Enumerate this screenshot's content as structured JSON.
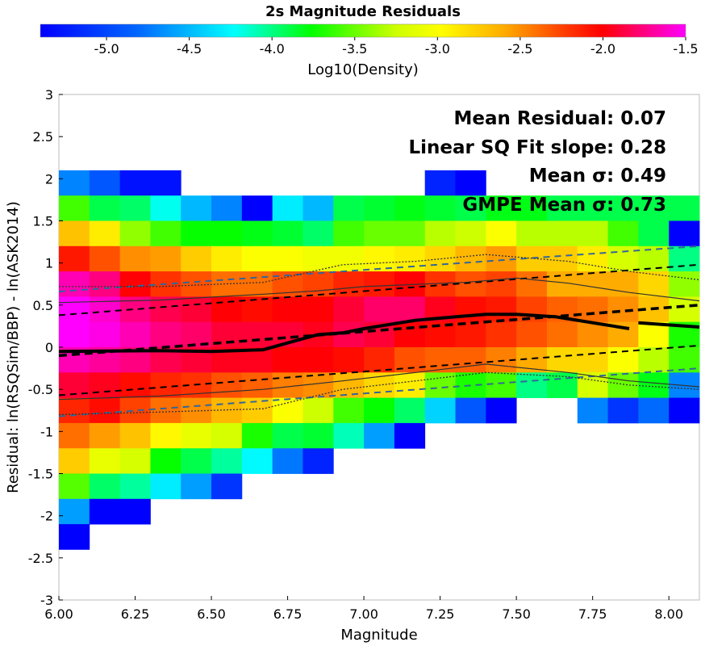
{
  "chart_data": {
    "type": "heatmap",
    "title": "2s Magnitude Residuals",
    "xlabel": "Magnitude",
    "ylabel": "Residual: ln(RSQSim/BBP) - ln(ASK2014)",
    "xlim": [
      6.0,
      8.1
    ],
    "ylim": [
      -3,
      3
    ],
    "xticks": [
      "6.00",
      "6.25",
      "6.50",
      "6.75",
      "7.00",
      "7.25",
      "7.50",
      "7.75",
      "8.00"
    ],
    "yticks": [
      "3",
      "2.5",
      "2",
      "1.5",
      "1",
      "0.5",
      "0",
      "-0.5",
      "-1",
      "-1.5",
      "-2",
      "-2.5",
      "-3"
    ],
    "colorbar": {
      "label": "Log10(Density)",
      "range": [
        -5.4,
        -1.5
      ],
      "ticks": [
        "-5.0",
        "-4.5",
        "-4.0",
        "-3.5",
        "-3.0",
        "-2.5",
        "-2.0",
        "-1.5"
      ]
    },
    "annotations": [
      "Mean Residual: 0.07",
      "Linear SQ Fit slope: 0.28",
      "Mean σ: 0.49",
      "GMPE Mean σ: 0.73"
    ],
    "cell_width": 0.1,
    "cell_height": 0.3,
    "x_start": 6.0,
    "cells": [
      {
        "y": 1.8,
        "values": [
          -4.7,
          -4.9,
          -5.3,
          -5.3,
          null,
          null,
          null,
          null,
          null,
          null,
          null,
          null,
          -5.2,
          -5.4,
          null,
          null,
          null,
          null,
          null,
          null,
          null
        ]
      },
      {
        "y": 1.5,
        "values": [
          -3.6,
          -3.9,
          -3.95,
          -4.2,
          -4.5,
          -4.7,
          -5.4,
          -4.3,
          -4.5,
          -3.9,
          -3.85,
          -3.8,
          -3.85,
          -3.9,
          -3.8,
          -3.8,
          -3.9,
          -3.9,
          -3.9,
          -3.9,
          -3.9
        ]
      },
      {
        "y": 1.2,
        "values": [
          -2.7,
          -2.9,
          -3.4,
          -3.6,
          -3.75,
          -3.75,
          -3.8,
          -3.85,
          -3.95,
          -3.6,
          -3.5,
          -3.5,
          -3.3,
          -3.25,
          -3.0,
          -3.3,
          -3.3,
          -3.3,
          -3.6,
          -3.9,
          -5.4
        ]
      },
      {
        "y": 0.9,
        "values": [
          -2.1,
          -2.3,
          -2.5,
          -2.55,
          -2.75,
          -2.9,
          -3.0,
          -3.0,
          -3.05,
          -3.05,
          -2.95,
          -2.9,
          -2.8,
          -2.65,
          -2.55,
          -2.75,
          -2.75,
          -2.9,
          -3.2,
          -3.3,
          -4.0
        ]
      },
      {
        "y": 0.6,
        "values": [
          -1.65,
          -1.75,
          -2.0,
          -2.2,
          -2.3,
          -2.4,
          -2.4,
          -2.3,
          -2.25,
          -2.15,
          -2.1,
          -2.0,
          -2.2,
          -2.3,
          -2.25,
          -2.4,
          -2.6,
          -2.6,
          -2.6,
          -2.8,
          -3.4
        ]
      },
      {
        "y": 0.3,
        "values": [
          -1.5,
          -1.6,
          -1.75,
          -1.85,
          -1.9,
          -2.0,
          -2.05,
          -2.0,
          -2.0,
          -1.9,
          -1.8,
          -1.8,
          -1.95,
          -2.05,
          -2.1,
          -2.25,
          -2.35,
          -2.4,
          -2.5,
          -2.7,
          -3.2
        ]
      },
      {
        "y": 0.0,
        "values": [
          -1.5,
          -1.55,
          -1.65,
          -1.75,
          -1.8,
          -1.9,
          -1.9,
          -1.9,
          -1.95,
          -1.85,
          -1.9,
          -2.0,
          -2.05,
          -2.1,
          -2.2,
          -2.3,
          -2.4,
          -2.5,
          -2.6,
          -3.0,
          -3.7
        ]
      },
      {
        "y": -0.3,
        "values": [
          -1.65,
          -1.7,
          -1.75,
          -1.85,
          -1.9,
          -1.95,
          -1.95,
          -2.0,
          -2.0,
          -2.05,
          -2.15,
          -2.3,
          -2.35,
          -2.35,
          -2.45,
          -2.6,
          -2.8,
          -2.8,
          -3.0,
          -3.3,
          -3.6
        ]
      },
      {
        "y": -0.6,
        "values": [
          -1.9,
          -1.95,
          -2.05,
          -2.15,
          -2.2,
          -2.3,
          -2.35,
          -2.45,
          -2.5,
          -2.65,
          -2.8,
          -2.9,
          -3.5,
          -3.7,
          -3.6,
          -4.0,
          -3.9,
          -3.2,
          -3.5,
          -3.8,
          -4.7
        ]
      },
      {
        "y": -0.9,
        "values": [
          -2.15,
          -2.05,
          -2.25,
          -2.4,
          -2.5,
          -2.65,
          -2.75,
          -3.0,
          -3.25,
          -3.6,
          -3.75,
          -3.95,
          -4.4,
          -4.9,
          -5.4,
          null,
          null,
          -4.7,
          -5.1,
          -4.8,
          -5.4
        ]
      },
      {
        "y": -1.2,
        "values": [
          -2.4,
          -2.55,
          -2.7,
          -2.95,
          -3.1,
          -3.2,
          -3.7,
          -3.9,
          -3.85,
          -4.1,
          -4.6,
          -5.4,
          null,
          null,
          null,
          null,
          null,
          null,
          null,
          null,
          null
        ]
      },
      {
        "y": -1.5,
        "values": [
          -2.75,
          -3.1,
          -3.2,
          -3.75,
          -3.9,
          -4.05,
          -4.25,
          -4.75,
          -5.2,
          null,
          null,
          null,
          null,
          null,
          null,
          null,
          null,
          null,
          null,
          null,
          null
        ]
      },
      {
        "y": -1.8,
        "values": [
          -3.55,
          -3.95,
          -4.05,
          -4.3,
          -4.6,
          -5.1,
          null,
          null,
          null,
          null,
          null,
          null,
          null,
          null,
          null,
          null,
          null,
          null,
          null,
          null,
          null
        ]
      },
      {
        "y": -2.1,
        "values": [
          -4.6,
          -5.4,
          -5.4,
          null,
          null,
          null,
          null,
          null,
          null,
          null,
          null,
          null,
          null,
          null,
          null,
          null,
          null,
          null,
          null,
          null,
          null
        ]
      },
      {
        "y": -2.4,
        "values": [
          -5.4,
          null,
          null,
          null,
          null,
          null,
          null,
          null,
          null,
          null,
          null,
          null,
          null,
          null,
          null,
          null,
          null,
          null,
          null,
          null,
          null
        ]
      }
    ],
    "lines": [
      {
        "name": "mean",
        "style": "solid-thick",
        "color": "#000000",
        "x": [
          6.0,
          6.33,
          6.5,
          6.67,
          6.85,
          6.93,
          7.0,
          7.17,
          7.33,
          7.4,
          7.5,
          7.63,
          7.87
        ],
        "y": [
          -0.05,
          -0.04,
          -0.05,
          -0.03,
          0.15,
          0.17,
          0.22,
          0.32,
          0.37,
          0.39,
          0.39,
          0.36,
          0.22
        ]
      },
      {
        "name": "mean-tail",
        "style": "solid-thick",
        "color": "#000000",
        "x": [
          7.9,
          8.1
        ],
        "y": [
          0.29,
          0.24
        ]
      },
      {
        "name": "fit",
        "style": "dashed-thick",
        "color": "#000000",
        "x": [
          6.0,
          8.1
        ],
        "y": [
          -0.1,
          0.5
        ]
      },
      {
        "name": "fit-plus",
        "style": "dashed",
        "color": "#000000",
        "x": [
          6.0,
          8.1
        ],
        "y": [
          0.38,
          0.98
        ]
      },
      {
        "name": "fit-minus",
        "style": "dashed",
        "color": "#000000",
        "x": [
          6.0,
          8.1
        ],
        "y": [
          -0.57,
          0.02
        ]
      },
      {
        "name": "gmpe-plus",
        "style": "dashed",
        "color": "#336699",
        "x": [
          6.0,
          8.1
        ],
        "y": [
          0.66,
          1.2
        ]
      },
      {
        "name": "gmpe-minus",
        "style": "dashed",
        "color": "#336699",
        "x": [
          6.0,
          8.1
        ],
        "y": [
          -0.82,
          -0.25
        ]
      },
      {
        "name": "upper-inner",
        "style": "thin",
        "color": "#333333",
        "x": [
          6.0,
          6.33,
          6.67,
          6.85,
          7.0,
          7.33,
          7.5,
          7.67,
          7.87,
          8.1
        ],
        "y": [
          0.53,
          0.56,
          0.63,
          0.67,
          0.72,
          0.77,
          0.82,
          0.76,
          0.65,
          0.55
        ]
      },
      {
        "name": "upper-outer",
        "style": "dotted",
        "color": "#333333",
        "x": [
          6.0,
          6.33,
          6.67,
          6.93,
          7.17,
          7.4,
          7.67,
          7.87,
          8.1
        ],
        "y": [
          0.72,
          0.72,
          0.77,
          0.98,
          1.02,
          1.1,
          1.02,
          0.9,
          0.8
        ]
      },
      {
        "name": "lower-inner",
        "style": "thin",
        "color": "#333333",
        "x": [
          6.0,
          6.33,
          6.67,
          6.93,
          7.17,
          7.4,
          7.67,
          7.87,
          8.1
        ],
        "y": [
          -0.62,
          -0.58,
          -0.5,
          -0.4,
          -0.3,
          -0.2,
          -0.3,
          -0.4,
          -0.47
        ]
      },
      {
        "name": "lower-outer",
        "style": "dotted",
        "color": "#333333",
        "x": [
          6.0,
          6.33,
          6.67,
          6.93,
          7.17,
          7.4,
          7.67,
          7.87,
          8.1
        ],
        "y": [
          -0.8,
          -0.77,
          -0.73,
          -0.5,
          -0.4,
          -0.3,
          -0.35,
          -0.45,
          -0.5
        ]
      }
    ]
  }
}
